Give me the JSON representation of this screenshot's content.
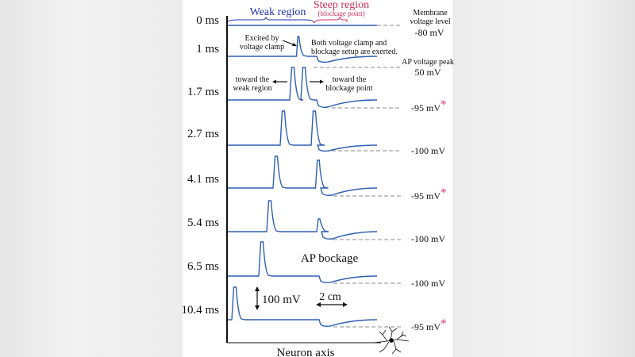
{
  "header": {
    "weak_region": "Weak region",
    "steep_region": "Steep region",
    "steep_sub": "(blockage point)",
    "membrane_line1": "Membrane",
    "membrane_line2": "voltage level",
    "membrane_value": "-80 mV",
    "ap_peak_label": "AP voltage peak",
    "ap_peak_value": "50 mV"
  },
  "rows": [
    {
      "time": "0 ms"
    },
    {
      "time": "1 ms",
      "right": ""
    },
    {
      "time": "1.7 ms",
      "right": "-95 mV",
      "asterisk": "*"
    },
    {
      "time": "2.7 ms",
      "right": "-100 mV"
    },
    {
      "time": "4.1 ms",
      "right": "-95 mV",
      "asterisk": "*"
    },
    {
      "time": "5.4 ms",
      "right": "-100 mV"
    },
    {
      "time": "6.5 ms",
      "right": "-100 mV"
    },
    {
      "time": "10.4 ms",
      "right": "-95 mV",
      "asterisk": "*"
    }
  ],
  "annotations": {
    "excited_1": "Excited by",
    "excited_2": "voltage clamp",
    "both_1": "Both voltage clamp and",
    "both_2": "blockage setup are exerted.",
    "toward_weak_1": "toward the",
    "toward_weak_2": "weak region",
    "toward_block_1": "toward the",
    "toward_block_2": "blockage point",
    "ap_blockage": "AP bockage",
    "scale_voltage": "100 mV",
    "scale_distance": "2 cm",
    "x_axis": "Neuron axis"
  },
  "colors": {
    "trace": "#2f5fb3",
    "weak": "#2233aa",
    "steep": "#d0305a",
    "asterisk": "#e0306a",
    "dashed": "#888888"
  }
}
